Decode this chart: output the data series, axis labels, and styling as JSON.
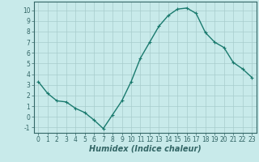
{
  "x": [
    0,
    1,
    2,
    3,
    4,
    5,
    6,
    7,
    8,
    9,
    10,
    11,
    12,
    13,
    14,
    15,
    16,
    17,
    18,
    19,
    20,
    21,
    22,
    23
  ],
  "y": [
    3.3,
    2.2,
    1.5,
    1.4,
    0.8,
    0.4,
    -0.3,
    -1.1,
    0.2,
    1.5,
    3.3,
    5.5,
    7.0,
    8.5,
    9.5,
    10.1,
    10.2,
    9.7,
    7.9,
    7.0,
    6.5,
    5.1,
    4.5,
    3.7
  ],
  "line_color": "#1a7a6e",
  "marker": "+",
  "markersize": 3,
  "linewidth": 1.0,
  "background_color": "#c8eaea",
  "grid_color": "#a8cccc",
  "xlabel": "Humidex (Indice chaleur)",
  "xlabel_fontsize": 7,
  "xlabel_fontstyle": "italic",
  "ylabel_ticks": [
    -1,
    0,
    1,
    2,
    3,
    4,
    5,
    6,
    7,
    8,
    9,
    10
  ],
  "xtick_labels": [
    "0",
    "1",
    "2",
    "3",
    "4",
    "5",
    "6",
    "7",
    "8",
    "9",
    "10",
    "11",
    "12",
    "13",
    "14",
    "15",
    "16",
    "17",
    "18",
    "19",
    "20",
    "21",
    "22",
    "23"
  ],
  "ylim": [
    -1.5,
    10.8
  ],
  "xlim": [
    -0.5,
    23.5
  ],
  "tick_fontsize": 5.5,
  "axis_color": "#336666"
}
